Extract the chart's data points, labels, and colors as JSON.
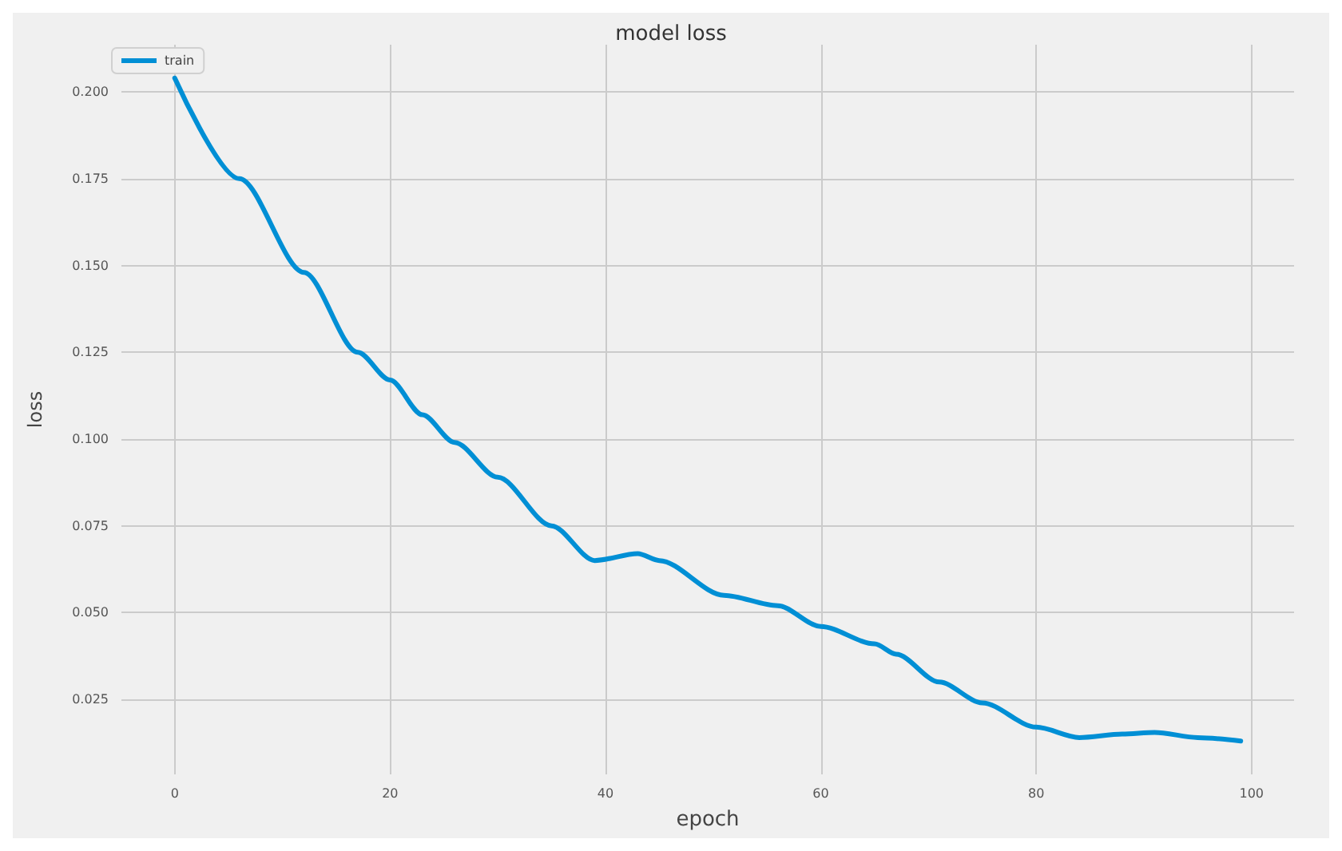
{
  "chart_data": {
    "type": "line",
    "title": "model loss",
    "xlabel": "epoch",
    "ylabel": "loss",
    "x": [
      0,
      6,
      12,
      17,
      20,
      23,
      26,
      30,
      35,
      39,
      43,
      45,
      51,
      56,
      60,
      65,
      67,
      71,
      75,
      80,
      84,
      88,
      91,
      95,
      99
    ],
    "series": [
      {
        "name": "train",
        "color": "#008fd5",
        "values": [
          0.204,
          0.175,
          0.148,
          0.125,
          0.117,
          0.107,
          0.099,
          0.089,
          0.075,
          0.065,
          0.067,
          0.065,
          0.055,
          0.052,
          0.046,
          0.041,
          0.038,
          0.03,
          0.024,
          0.017,
          0.014,
          0.015,
          0.0155,
          0.014,
          0.013
        ]
      }
    ],
    "xlim": [
      -4.95,
      103.95
    ],
    "ylim": [
      0.0034,
      0.2136
    ],
    "xticks": [
      0,
      20,
      40,
      60,
      80,
      100
    ],
    "yticks": [
      {
        "value": 0.025,
        "label": "0.025"
      },
      {
        "value": 0.05,
        "label": "0.050"
      },
      {
        "value": 0.075,
        "label": "0.075"
      },
      {
        "value": 0.1,
        "label": "0.100"
      },
      {
        "value": 0.125,
        "label": "0.125"
      },
      {
        "value": 0.15,
        "label": "0.150"
      },
      {
        "value": 0.175,
        "label": "0.175"
      },
      {
        "value": 0.2,
        "label": "0.200"
      }
    ],
    "grid": true,
    "legend": "top left",
    "marker": "none",
    "line_style": "solid"
  }
}
